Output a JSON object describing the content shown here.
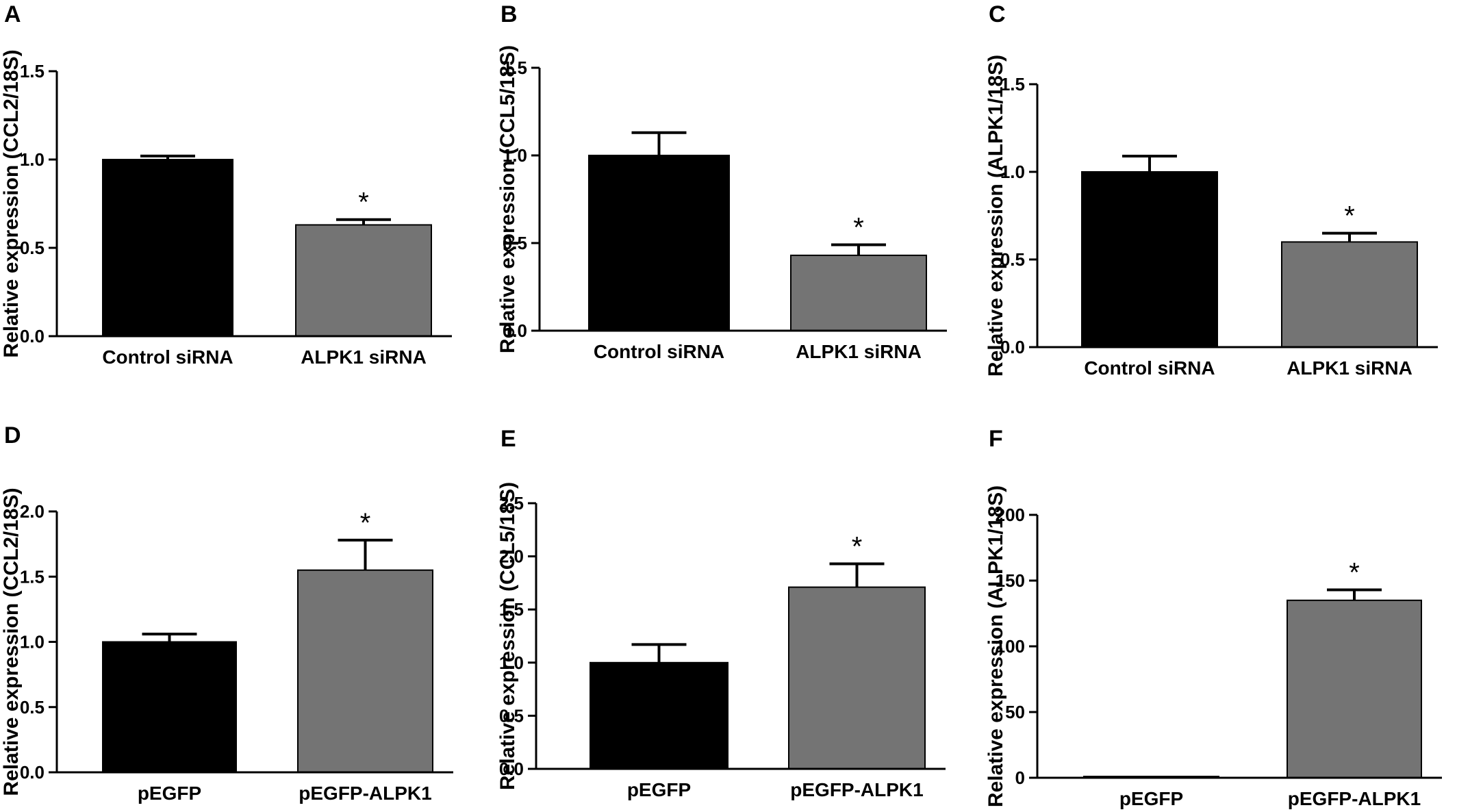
{
  "colors": {
    "control_bar": "#000000",
    "treatment_bar": "#747474",
    "axis": "#000000"
  },
  "chart_data": [
    {
      "panel": "A",
      "type": "bar",
      "categories": [
        "Control siRNA",
        "ALPK1 siRNA"
      ],
      "values": [
        1.0,
        0.63
      ],
      "errors": [
        0.02,
        0.03
      ],
      "significance": [
        "",
        "*"
      ],
      "ylabel": "Relative expression (CCL2/18S)",
      "xlabel": "",
      "ylim": [
        0,
        1.5
      ],
      "yticks": [
        "0.0",
        "0.5",
        "1.0",
        "1.5"
      ],
      "ytick_values": [
        0,
        0.5,
        1.0,
        1.5
      ],
      "grid": false,
      "legend": "none"
    },
    {
      "panel": "B",
      "type": "bar",
      "categories": [
        "Control siRNA",
        "ALPK1 siRNA"
      ],
      "values": [
        1.0,
        0.43
      ],
      "errors": [
        0.13,
        0.06
      ],
      "significance": [
        "",
        "*"
      ],
      "ylabel": "Relative expression (CCL5/18S)",
      "xlabel": "",
      "ylim": [
        0,
        1.5
      ],
      "yticks": [
        "0.0",
        "0.5",
        "1.0",
        "1.5"
      ],
      "ytick_values": [
        0,
        0.5,
        1.0,
        1.5
      ],
      "grid": false,
      "legend": "none"
    },
    {
      "panel": "C",
      "type": "bar",
      "categories": [
        "Control siRNA",
        "ALPK1 siRNA"
      ],
      "values": [
        1.0,
        0.6
      ],
      "errors": [
        0.09,
        0.05
      ],
      "significance": [
        "",
        "*"
      ],
      "ylabel": "Relative expression (ALPK1/18S)",
      "xlabel": "",
      "ylim": [
        0,
        1.5
      ],
      "yticks": [
        "0.0",
        "0.5",
        "1.0",
        "1.5"
      ],
      "ytick_values": [
        0,
        0.5,
        1.0,
        1.5
      ],
      "grid": false,
      "legend": "none"
    },
    {
      "panel": "D",
      "type": "bar",
      "categories": [
        "pEGFP",
        "pEGFP-ALPK1"
      ],
      "values": [
        1.0,
        1.55
      ],
      "errors": [
        0.06,
        0.23
      ],
      "significance": [
        "",
        "*"
      ],
      "ylabel": "Relative expression (CCL2/18S)",
      "xlabel": "",
      "ylim": [
        0,
        2.0
      ],
      "yticks": [
        "0.0",
        "0.5",
        "1.0",
        "1.5",
        "2.0"
      ],
      "ytick_values": [
        0,
        0.5,
        1.0,
        1.5,
        2.0
      ],
      "grid": false,
      "legend": "none"
    },
    {
      "panel": "E",
      "type": "bar",
      "categories": [
        "pEGFP",
        "pEGFP-ALPK1"
      ],
      "values": [
        1.0,
        1.71
      ],
      "errors": [
        0.17,
        0.22
      ],
      "significance": [
        "",
        "*"
      ],
      "ylabel": "Relative expression (CCL5/18S)",
      "xlabel": "",
      "ylim": [
        0,
        2.5
      ],
      "yticks": [
        "0.0",
        "0.5",
        "1.0",
        "1.5",
        "2.0",
        "2.5"
      ],
      "ytick_values": [
        0,
        0.5,
        1.0,
        1.5,
        2.0,
        2.5
      ],
      "grid": false,
      "legend": "none"
    },
    {
      "panel": "F",
      "type": "bar",
      "categories": [
        "pEGFP",
        "pEGFP-ALPK1"
      ],
      "values": [
        1.0,
        135
      ],
      "errors": [
        0,
        8
      ],
      "significance": [
        "",
        "*"
      ],
      "ylabel": "Relative expression (ALPK1/18S)",
      "xlabel": "",
      "ylim": [
        0,
        200
      ],
      "yticks": [
        "0",
        "50",
        "100",
        "150",
        "200"
      ],
      "ytick_values": [
        0,
        50,
        100,
        150,
        200
      ],
      "grid": false,
      "legend": "none"
    }
  ]
}
